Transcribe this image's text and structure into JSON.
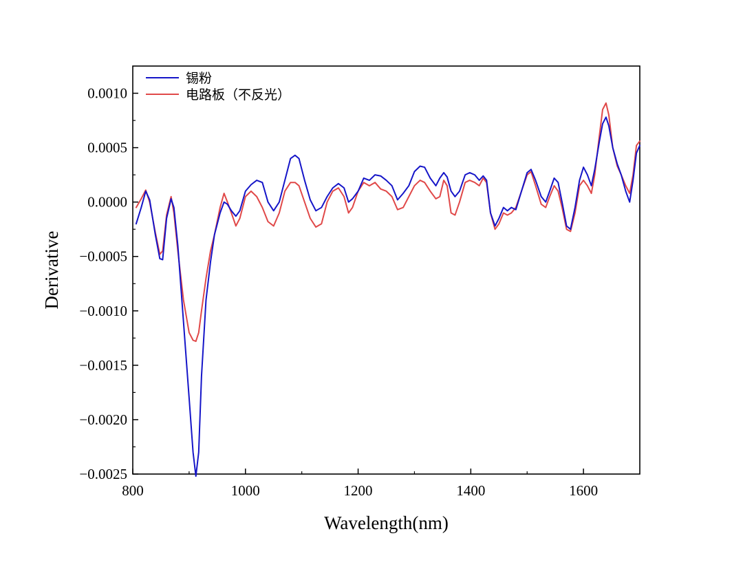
{
  "chart_data": {
    "type": "line",
    "xlabel": "Wavelength(nm)",
    "ylabel": "Derivative",
    "xlim": [
      800,
      1700
    ],
    "ylim": [
      -0.0025,
      0.00125
    ],
    "x_ticks": [
      800,
      1000,
      1200,
      1400,
      1600
    ],
    "y_ticks": [
      0.001,
      0.0005,
      0.0,
      -0.0005,
      -0.001,
      -0.0015,
      -0.002,
      -0.0025
    ],
    "y_tick_labels": [
      "0.0010",
      "0.0005",
      "0.0000",
      "−0.0005",
      "−0.0010",
      "−0.0015",
      "−0.0020",
      "−0.0025"
    ],
    "grid": false,
    "legend_position": "top-left",
    "series": [
      {
        "name": "锡粉",
        "color": "#1515c8",
        "points": [
          [
            806,
            -0.0002
          ],
          [
            815,
            -5e-05
          ],
          [
            823,
            0.0001
          ],
          [
            830,
            2e-05
          ],
          [
            840,
            -0.0003
          ],
          [
            848,
            -0.00052
          ],
          [
            853,
            -0.00053
          ],
          [
            860,
            -0.00015
          ],
          [
            868,
            3e-05
          ],
          [
            873,
            -5e-05
          ],
          [
            880,
            -0.0004
          ],
          [
            890,
            -0.0011
          ],
          [
            900,
            -0.0018
          ],
          [
            907,
            -0.0023
          ],
          [
            912,
            -0.00252
          ],
          [
            917,
            -0.0023
          ],
          [
            922,
            -0.0016
          ],
          [
            930,
            -0.0009
          ],
          [
            938,
            -0.00055
          ],
          [
            945,
            -0.0003
          ],
          [
            955,
            -0.0001
          ],
          [
            962,
            0.0
          ],
          [
            968,
            -2e-05
          ],
          [
            975,
            -8e-05
          ],
          [
            983,
            -0.00013
          ],
          [
            990,
            -8e-05
          ],
          [
            1000,
            0.0001
          ],
          [
            1010,
            0.00016
          ],
          [
            1020,
            0.0002
          ],
          [
            1030,
            0.00018
          ],
          [
            1040,
            0.0
          ],
          [
            1050,
            -8e-05
          ],
          [
            1060,
            0.0
          ],
          [
            1070,
            0.0002
          ],
          [
            1080,
            0.0004
          ],
          [
            1088,
            0.00043
          ],
          [
            1095,
            0.0004
          ],
          [
            1105,
            0.0002
          ],
          [
            1115,
            2e-05
          ],
          [
            1125,
            -8e-05
          ],
          [
            1135,
            -5e-05
          ],
          [
            1145,
            5e-05
          ],
          [
            1155,
            0.00013
          ],
          [
            1165,
            0.00017
          ],
          [
            1175,
            0.00013
          ],
          [
            1183,
            0.0
          ],
          [
            1190,
            3e-05
          ],
          [
            1200,
            0.0001
          ],
          [
            1210,
            0.00022
          ],
          [
            1220,
            0.0002
          ],
          [
            1230,
            0.00025
          ],
          [
            1240,
            0.00024
          ],
          [
            1250,
            0.0002
          ],
          [
            1260,
            0.00015
          ],
          [
            1270,
            2e-05
          ],
          [
            1280,
            8e-05
          ],
          [
            1290,
            0.00015
          ],
          [
            1300,
            0.00028
          ],
          [
            1310,
            0.00033
          ],
          [
            1318,
            0.00032
          ],
          [
            1328,
            0.00022
          ],
          [
            1338,
            0.00015
          ],
          [
            1345,
            0.00022
          ],
          [
            1352,
            0.00027
          ],
          [
            1358,
            0.00023
          ],
          [
            1365,
            0.0001
          ],
          [
            1372,
            5e-05
          ],
          [
            1380,
            0.0001
          ],
          [
            1390,
            0.00025
          ],
          [
            1398,
            0.00027
          ],
          [
            1407,
            0.00025
          ],
          [
            1415,
            0.0002
          ],
          [
            1422,
            0.00024
          ],
          [
            1428,
            0.0002
          ],
          [
            1435,
            -0.0001
          ],
          [
            1443,
            -0.00022
          ],
          [
            1450,
            -0.00015
          ],
          [
            1458,
            -5e-05
          ],
          [
            1465,
            -8e-05
          ],
          [
            1472,
            -5e-05
          ],
          [
            1480,
            -7e-05
          ],
          [
            1490,
            0.0001
          ],
          [
            1500,
            0.00027
          ],
          [
            1507,
            0.0003
          ],
          [
            1515,
            0.0002
          ],
          [
            1525,
            5e-05
          ],
          [
            1533,
            0.0
          ],
          [
            1540,
            0.0001
          ],
          [
            1548,
            0.00022
          ],
          [
            1555,
            0.00018
          ],
          [
            1562,
            0.0
          ],
          [
            1570,
            -0.00022
          ],
          [
            1577,
            -0.00025
          ],
          [
            1585,
            -5e-05
          ],
          [
            1593,
            0.0002
          ],
          [
            1600,
            0.00032
          ],
          [
            1607,
            0.00025
          ],
          [
            1614,
            0.00015
          ],
          [
            1620,
            0.0003
          ],
          [
            1628,
            0.00055
          ],
          [
            1634,
            0.00072
          ],
          [
            1640,
            0.00078
          ],
          [
            1645,
            0.0007
          ],
          [
            1652,
            0.0005
          ],
          [
            1660,
            0.00035
          ],
          [
            1667,
            0.00025
          ],
          [
            1675,
            0.0001
          ],
          [
            1682,
            0.0
          ],
          [
            1688,
            0.0002
          ],
          [
            1694,
            0.00045
          ],
          [
            1700,
            0.00052
          ]
        ]
      },
      {
        "name": "电路板（不反光）",
        "color": "#e04848",
        "points": [
          [
            806,
            -5e-05
          ],
          [
            815,
            3e-05
          ],
          [
            823,
            0.00011
          ],
          [
            830,
            0.0
          ],
          [
            840,
            -0.00028
          ],
          [
            848,
            -0.00048
          ],
          [
            853,
            -0.00045
          ],
          [
            860,
            -0.00012
          ],
          [
            868,
            5e-05
          ],
          [
            873,
            -0.0001
          ],
          [
            880,
            -0.00045
          ],
          [
            890,
            -0.0009
          ],
          [
            900,
            -0.0012
          ],
          [
            907,
            -0.00127
          ],
          [
            912,
            -0.00128
          ],
          [
            917,
            -0.0012
          ],
          [
            922,
            -0.001
          ],
          [
            930,
            -0.0007
          ],
          [
            938,
            -0.00045
          ],
          [
            945,
            -0.0003
          ],
          [
            955,
            -5e-05
          ],
          [
            962,
            8e-05
          ],
          [
            968,
            0.0
          ],
          [
            975,
            -0.0001
          ],
          [
            983,
            -0.00022
          ],
          [
            990,
            -0.00015
          ],
          [
            1000,
            5e-05
          ],
          [
            1010,
            0.0001
          ],
          [
            1020,
            5e-05
          ],
          [
            1030,
            -5e-05
          ],
          [
            1040,
            -0.00018
          ],
          [
            1050,
            -0.00022
          ],
          [
            1060,
            -0.0001
          ],
          [
            1070,
            0.0001
          ],
          [
            1080,
            0.00018
          ],
          [
            1088,
            0.00018
          ],
          [
            1095,
            0.00015
          ],
          [
            1105,
            0.0
          ],
          [
            1115,
            -0.00015
          ],
          [
            1125,
            -0.00023
          ],
          [
            1135,
            -0.0002
          ],
          [
            1145,
            0.0
          ],
          [
            1155,
            0.0001
          ],
          [
            1165,
            0.00013
          ],
          [
            1175,
            5e-05
          ],
          [
            1183,
            -0.0001
          ],
          [
            1190,
            -5e-05
          ],
          [
            1200,
            0.0001
          ],
          [
            1210,
            0.00018
          ],
          [
            1220,
            0.00015
          ],
          [
            1230,
            0.00018
          ],
          [
            1240,
            0.00012
          ],
          [
            1250,
            0.0001
          ],
          [
            1260,
            5e-05
          ],
          [
            1270,
            -7e-05
          ],
          [
            1280,
            -5e-05
          ],
          [
            1290,
            5e-05
          ],
          [
            1300,
            0.00015
          ],
          [
            1310,
            0.0002
          ],
          [
            1318,
            0.00018
          ],
          [
            1328,
            0.0001
          ],
          [
            1338,
            3e-05
          ],
          [
            1345,
            5e-05
          ],
          [
            1352,
            0.0002
          ],
          [
            1358,
            0.00015
          ],
          [
            1365,
            -0.0001
          ],
          [
            1372,
            -0.00012
          ],
          [
            1380,
            0.0
          ],
          [
            1390,
            0.00018
          ],
          [
            1398,
            0.0002
          ],
          [
            1407,
            0.00018
          ],
          [
            1415,
            0.00015
          ],
          [
            1422,
            0.00022
          ],
          [
            1428,
            0.00018
          ],
          [
            1435,
            -0.0001
          ],
          [
            1443,
            -0.00025
          ],
          [
            1450,
            -0.0002
          ],
          [
            1458,
            -0.0001
          ],
          [
            1465,
            -0.00012
          ],
          [
            1472,
            -0.0001
          ],
          [
            1480,
            -5e-05
          ],
          [
            1490,
            0.0001
          ],
          [
            1500,
            0.00025
          ],
          [
            1507,
            0.00028
          ],
          [
            1515,
            0.00015
          ],
          [
            1525,
            -2e-05
          ],
          [
            1533,
            -5e-05
          ],
          [
            1540,
            5e-05
          ],
          [
            1548,
            0.00015
          ],
          [
            1555,
            0.0001
          ],
          [
            1562,
            -5e-05
          ],
          [
            1570,
            -0.00025
          ],
          [
            1577,
            -0.00027
          ],
          [
            1585,
            -0.0001
          ],
          [
            1593,
            0.00015
          ],
          [
            1600,
            0.0002
          ],
          [
            1607,
            0.00015
          ],
          [
            1614,
            8e-05
          ],
          [
            1620,
            0.00025
          ],
          [
            1628,
            0.0006
          ],
          [
            1634,
            0.00085
          ],
          [
            1640,
            0.00091
          ],
          [
            1645,
            0.0008
          ],
          [
            1652,
            0.0005
          ],
          [
            1660,
            0.00033
          ],
          [
            1667,
            0.00025
          ],
          [
            1675,
            0.00015
          ],
          [
            1682,
            8e-05
          ],
          [
            1688,
            0.00025
          ],
          [
            1694,
            0.00052
          ],
          [
            1700,
            0.00056
          ]
        ]
      }
    ]
  }
}
